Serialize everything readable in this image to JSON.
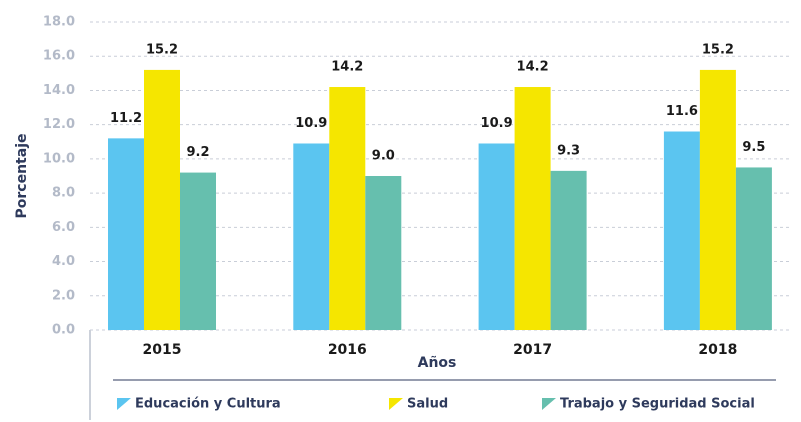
{
  "chart_data": {
    "type": "bar",
    "x_label": "Años",
    "y_label": "Porcentaje",
    "categories": [
      "2015",
      "2016",
      "2017",
      "2018"
    ],
    "series": [
      {
        "name": "Educación y Cultura",
        "color": "#5bc5f0",
        "values": [
          11.2,
          10.9,
          10.9,
          11.6
        ]
      },
      {
        "name": "Salud",
        "color": "#f5e600",
        "values": [
          15.2,
          14.2,
          14.2,
          15.2
        ]
      },
      {
        "name": "Trabajo y Seguridad Social",
        "color": "#66bfae",
        "values": [
          9.2,
          9.0,
          9.3,
          9.5
        ],
        "value_labels": [
          "9.2",
          "9.0",
          "9.3",
          "9.5"
        ]
      }
    ],
    "ylim": [
      0,
      18
    ],
    "yticks": [
      {
        "value": 0,
        "label": "0.0"
      },
      {
        "value": 2,
        "label": "2.0"
      },
      {
        "value": 4,
        "label": "4.0"
      },
      {
        "value": 6,
        "label": "6.0"
      },
      {
        "value": 8,
        "label": "8.0"
      },
      {
        "value": 10,
        "label": "10.0"
      },
      {
        "value": 12,
        "label": "12.0"
      },
      {
        "value": 14,
        "label": "14.0"
      },
      {
        "value": 16,
        "label": "16.0"
      },
      {
        "value": 18,
        "label": "18.0"
      }
    ],
    "grid": true,
    "legend": "bottom"
  }
}
